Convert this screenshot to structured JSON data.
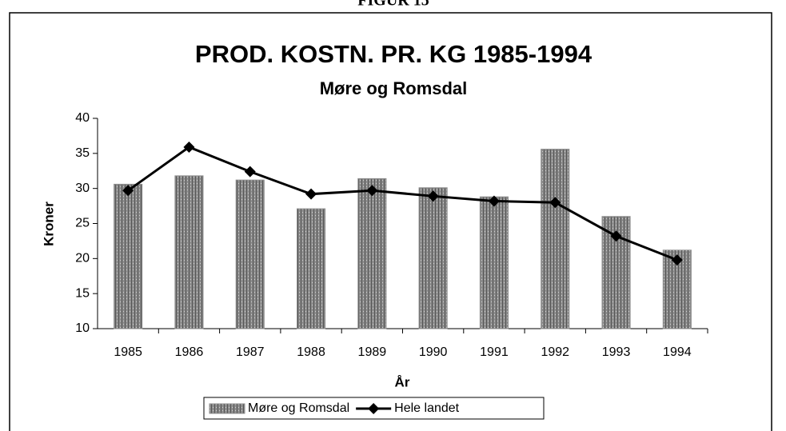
{
  "header": "FIGUR 15",
  "chart_data": {
    "type": "bar_line",
    "title": "PROD. KOSTN. PR. KG 1985-1994",
    "subtitle": "Møre og Romsdal",
    "y_label": "Kroner",
    "x_label": "År",
    "categories": [
      "1985",
      "1986",
      "1987",
      "1988",
      "1989",
      "1990",
      "1991",
      "1992",
      "1993",
      "1994"
    ],
    "series": [
      {
        "name": "Møre og Romsdal",
        "type": "bar",
        "color": "#8c8c8c",
        "values": [
          30.6,
          31.8,
          31.2,
          27.1,
          31.4,
          30.1,
          28.8,
          35.6,
          26.0,
          21.2
        ]
      },
      {
        "name": "Hele landet",
        "type": "line",
        "color": "#000000",
        "values": [
          29.7,
          35.9,
          32.4,
          29.2,
          29.7,
          28.9,
          28.2,
          28.0,
          23.2,
          19.8
        ]
      }
    ],
    "ylim": [
      10,
      40
    ],
    "yticks": [
      10,
      15,
      20,
      25,
      30,
      35,
      40
    ],
    "legend": "bottom"
  }
}
